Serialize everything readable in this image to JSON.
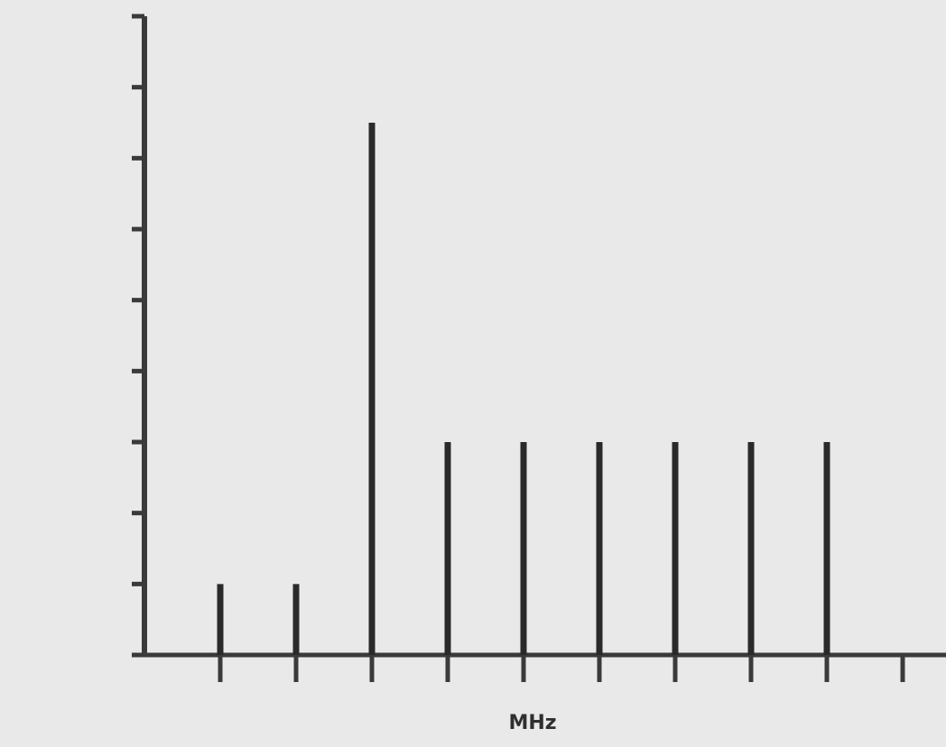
{
  "chart_data": {
    "type": "bar",
    "title": "",
    "xlabel": "MHz",
    "ylabel": "",
    "x": [
      1,
      2,
      3,
      4,
      5,
      6,
      7,
      8,
      9,
      10
    ],
    "values": [
      1,
      1,
      7.5,
      3,
      3,
      3,
      3,
      3,
      3,
      0
    ],
    "ylim": [
      0,
      9
    ],
    "xlim": [
      0,
      10.5
    ],
    "grid": false,
    "legend": "none",
    "colors": {
      "bars": "#2a2a2a",
      "axes": "#3a3a3a",
      "background": "#e9e9e9"
    }
  }
}
